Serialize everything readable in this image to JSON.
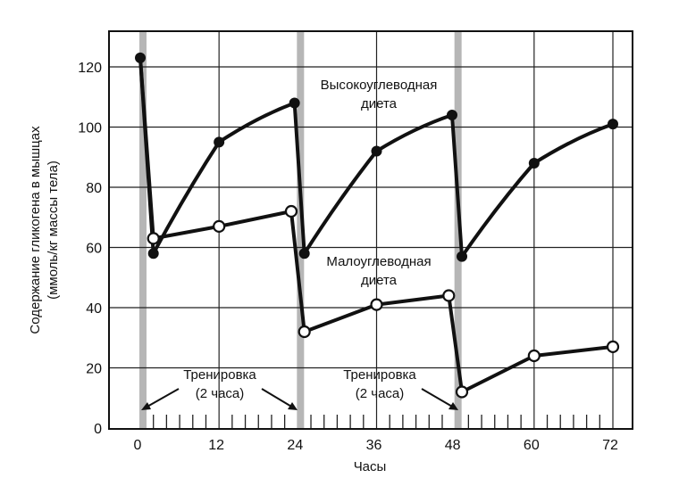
{
  "chart_data": {
    "type": "line",
    "title": "",
    "xlabel": "Часы",
    "ylabel_lines": [
      "Содержание гликогена в мышцах",
      "(ммоль/кг массы тела)"
    ],
    "xlim": [
      -4,
      76
    ],
    "ylim": [
      0,
      132
    ],
    "x_ticks": [
      0,
      12,
      24,
      36,
      48,
      60,
      72
    ],
    "x_tick_labels": [
      "0",
      "12",
      "24",
      "36",
      "48",
      "60",
      "72"
    ],
    "y_ticks": [
      0,
      20,
      40,
      60,
      80,
      100,
      120
    ],
    "y_tick_labels": [
      "0",
      "20",
      "40",
      "60",
      "80",
      "100",
      "120"
    ],
    "grid": true,
    "minor_ticks_every_hours": 2,
    "training_bands": [
      0,
      24,
      48
    ],
    "series": [
      {
        "name": "Высокоуглеводная диета",
        "marker": "filled-circle",
        "color": "#111111",
        "points": [
          [
            0,
            123
          ],
          [
            2,
            58
          ],
          [
            12,
            95
          ],
          [
            23.5,
            108
          ],
          [
            25,
            58
          ],
          [
            36,
            92
          ],
          [
            47.5,
            104
          ],
          [
            49,
            57
          ],
          [
            60,
            88
          ],
          [
            72,
            101
          ]
        ]
      },
      {
        "name": "Малоуглеводная диета",
        "marker": "open-circle",
        "color": "#111111",
        "points": [
          [
            0,
            123
          ],
          [
            2,
            63
          ],
          [
            12,
            67
          ],
          [
            23,
            72
          ],
          [
            25,
            32
          ],
          [
            36,
            41
          ],
          [
            47,
            44
          ],
          [
            49,
            12
          ],
          [
            60,
            24
          ],
          [
            72,
            27
          ]
        ]
      }
    ],
    "annotations": {
      "high_carb": [
        "Высокоуглеводная",
        "диета"
      ],
      "low_carb": [
        "Малоуглеводная",
        "диета"
      ],
      "training_1": [
        "Тренировка",
        "(2 часа)"
      ],
      "training_2": [
        "Тренировка",
        "(2 часа)"
      ]
    }
  }
}
